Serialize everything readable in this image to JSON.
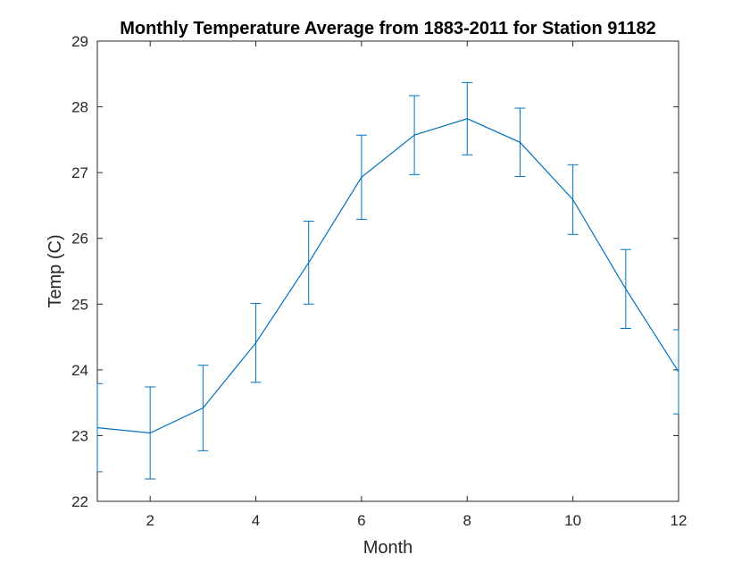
{
  "chart_data": {
    "type": "line",
    "title": "Monthly Temperature Average from 1883-2011 for Station 91182",
    "xlabel": "Month",
    "ylabel": "Temp (C)",
    "xlim": [
      1,
      12
    ],
    "ylim": [
      22,
      29
    ],
    "xticks": [
      2,
      4,
      6,
      8,
      10,
      12
    ],
    "yticks": [
      22,
      23,
      24,
      25,
      26,
      27,
      28,
      29
    ],
    "grid": false,
    "line_color": "#0072BD",
    "series": [
      {
        "x": [
          1,
          2,
          3,
          4,
          5,
          6,
          7,
          8,
          9,
          10,
          11,
          12
        ],
        "values": [
          23.12,
          23.04,
          23.42,
          24.41,
          25.63,
          26.93,
          27.57,
          27.82,
          27.46,
          26.59,
          25.23,
          23.97
        ],
        "error": [
          0.67,
          0.7,
          0.65,
          0.6,
          0.63,
          0.64,
          0.6,
          0.55,
          0.52,
          0.53,
          0.6,
          0.64
        ]
      }
    ]
  }
}
